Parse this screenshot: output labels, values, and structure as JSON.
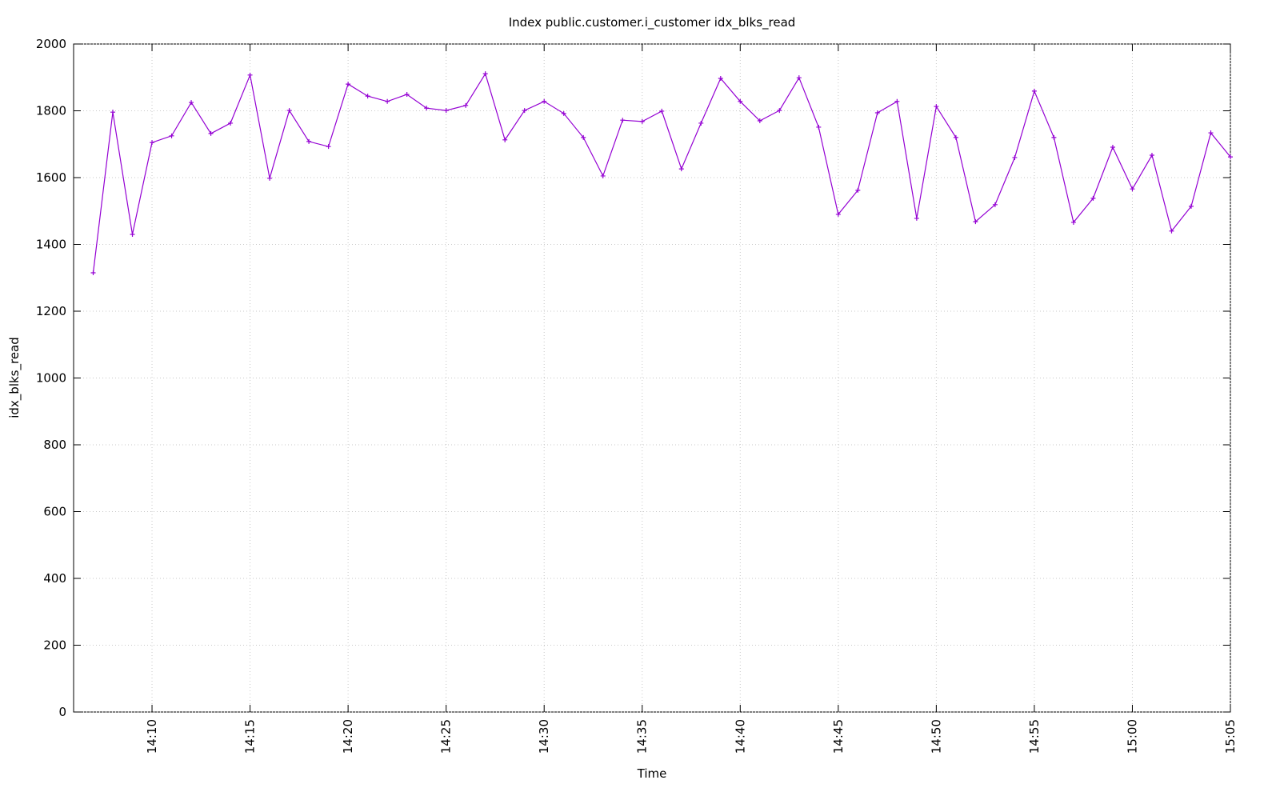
{
  "chart_data": {
    "type": "line",
    "title": "Index public.customer.i_customer idx_blks_read",
    "x_label": "Time",
    "y_label": "idx_blks_read",
    "x": [
      "14:07",
      "14:08",
      "14:09",
      "14:10",
      "14:11",
      "14:12",
      "14:13",
      "14:14",
      "14:15",
      "14:16",
      "14:17",
      "14:18",
      "14:19",
      "14:20",
      "14:21",
      "14:22",
      "14:23",
      "14:24",
      "14:25",
      "14:26",
      "14:27",
      "14:28",
      "14:29",
      "14:30",
      "14:31",
      "14:32",
      "14:33",
      "14:34",
      "14:35",
      "14:36",
      "14:37",
      "14:38",
      "14:39",
      "14:40",
      "14:41",
      "14:42",
      "14:43",
      "14:44",
      "14:45",
      "14:46",
      "14:47",
      "14:48",
      "14:49",
      "14:50",
      "14:51",
      "14:52",
      "14:53",
      "14:54",
      "14:55",
      "14:56",
      "14:57",
      "14:58",
      "14:59",
      "15:00",
      "15:01",
      "15:02",
      "15:03",
      "15:04",
      "15:05"
    ],
    "series": [
      {
        "name": "idx_blks_read",
        "color": "#9400d3",
        "values": [
          1315,
          1796,
          1430,
          1705,
          1725,
          1825,
          1732,
          1763,
          1907,
          1598,
          1801,
          1708,
          1693,
          1880,
          1844,
          1828,
          1849,
          1808,
          1801,
          1816,
          1911,
          1713,
          1801,
          1828,
          1792,
          1720,
          1605,
          1772,
          1768,
          1799,
          1626,
          1763,
          1897,
          1828,
          1770,
          1801,
          1899,
          1751,
          1490,
          1562,
          1794,
          1828,
          1478,
          1813,
          1720,
          1468,
          1519,
          1660,
          1859,
          1720,
          1466,
          1538,
          1691,
          1566,
          1667,
          1440,
          1514,
          1734,
          1662
        ]
      }
    ],
    "xlim": [
      "14:06",
      "15:05"
    ],
    "xticks": [
      "14:10",
      "14:15",
      "14:20",
      "14:25",
      "14:30",
      "14:35",
      "14:40",
      "14:45",
      "14:50",
      "14:55",
      "15:00",
      "15:05"
    ],
    "ylim": [
      0,
      2000
    ],
    "yticks": [
      0,
      200,
      400,
      600,
      800,
      1000,
      1200,
      1400,
      1600,
      1800,
      2000
    ],
    "grid": true
  }
}
